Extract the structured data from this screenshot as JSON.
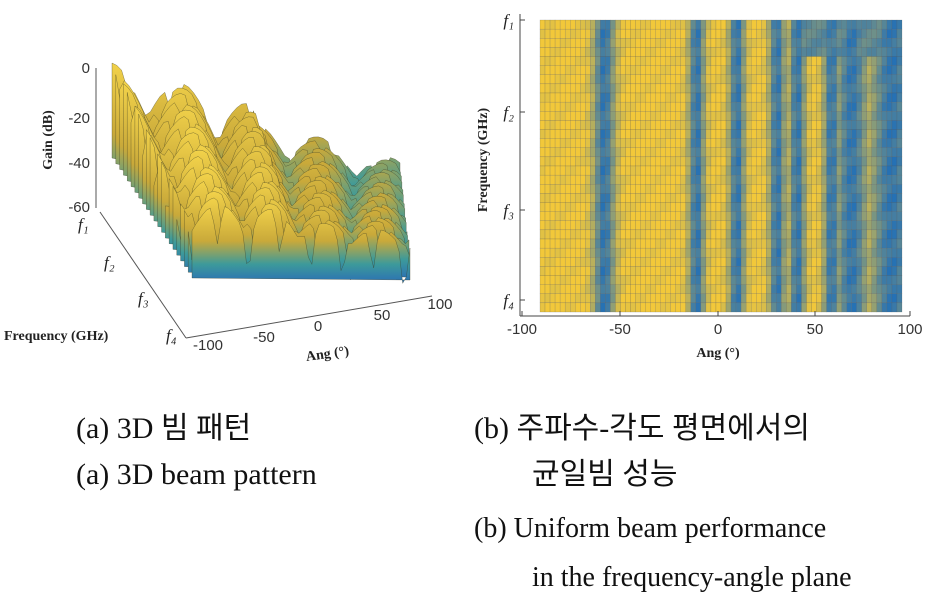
{
  "panel_a": {
    "z_label": "Gain (dB)",
    "z_ticks": [
      0,
      -20,
      -40,
      -60
    ],
    "y_label": "Frequency (GHz)",
    "y_ticks": [
      "f₁",
      "f₂",
      "f₃",
      "f₄"
    ],
    "x_label": "Ang (°)",
    "x_ticks": [
      -100,
      -50,
      0,
      50,
      100
    ],
    "caption_ko": "(a) 3D 빔 패턴",
    "caption_en": "(a) 3D beam pattern"
  },
  "panel_b": {
    "y_label": "Frequency (GHz)",
    "y_ticks": [
      "f₁",
      "f₂",
      "f₃",
      "f₄"
    ],
    "x_label": "Ang (°)",
    "x_ticks": [
      -100,
      -50,
      0,
      50,
      100
    ],
    "caption_ko": [
      "(b) 주파수-각도 평면에서의",
      "균일빔 성능"
    ],
    "caption_en": [
      "(b) Uniform beam performance",
      "in the frequency-angle plane"
    ]
  }
}
